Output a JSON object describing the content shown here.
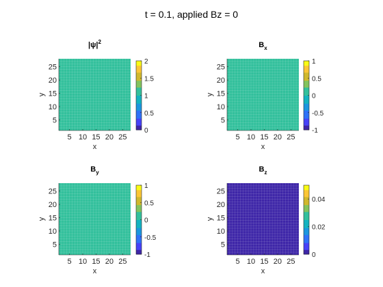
{
  "figure": {
    "title": "t = 0.1, applied Bz = 0"
  },
  "chart_data": [
    {
      "type": "heatmap",
      "title_base": "|ψ|",
      "title_sup": "2",
      "xlabel": "x",
      "ylabel": "y",
      "xticks": [
        "5",
        "10",
        "15",
        "20",
        "25"
      ],
      "yticks": [
        "5",
        "10",
        "15",
        "20",
        "25"
      ],
      "xlim": [
        1,
        28
      ],
      "ylim": [
        1,
        28
      ],
      "clim": [
        0,
        2
      ],
      "colorbar_ticks": [
        "0",
        "0.5",
        "1",
        "1.5",
        "2"
      ],
      "colorbar_tick_values": [
        0,
        0.5,
        1,
        1.5,
        2
      ],
      "field_value": 1
    },
    {
      "type": "heatmap",
      "title_base": "B",
      "title_sub": "x",
      "xlabel": "x",
      "ylabel": "y",
      "xticks": [
        "5",
        "10",
        "15",
        "20",
        "25"
      ],
      "yticks": [
        "5",
        "10",
        "15",
        "20",
        "25"
      ],
      "xlim": [
        1,
        28
      ],
      "ylim": [
        1,
        28
      ],
      "clim": [
        -1,
        1
      ],
      "colorbar_ticks": [
        "-1",
        "-0.5",
        "0",
        "0.5",
        "1"
      ],
      "colorbar_tick_values": [
        -1,
        -0.5,
        0,
        0.5,
        1
      ],
      "field_value": 0
    },
    {
      "type": "heatmap",
      "title_base": "B",
      "title_sub": "y",
      "xlabel": "x",
      "ylabel": "y",
      "xticks": [
        "5",
        "10",
        "15",
        "20",
        "25"
      ],
      "yticks": [
        "5",
        "10",
        "15",
        "20",
        "25"
      ],
      "xlim": [
        1,
        28
      ],
      "ylim": [
        1,
        28
      ],
      "clim": [
        -1,
        1
      ],
      "colorbar_ticks": [
        "-1",
        "-0.5",
        "0",
        "0.5",
        "1"
      ],
      "colorbar_tick_values": [
        -1,
        -0.5,
        0,
        0.5,
        1
      ],
      "field_value": 0
    },
    {
      "type": "heatmap",
      "title_base": "B",
      "title_sub": "z",
      "xlabel": "x",
      "ylabel": "y",
      "xticks": [
        "5",
        "10",
        "15",
        "20",
        "25"
      ],
      "yticks": [
        "5",
        "10",
        "15",
        "20",
        "25"
      ],
      "xlim": [
        1,
        28
      ],
      "ylim": [
        1,
        28
      ],
      "clim": [
        0,
        0.05
      ],
      "colorbar_ticks": [
        "0",
        "0.02",
        "0.04"
      ],
      "colorbar_tick_values": [
        0,
        0.02,
        0.04
      ],
      "field_value": 0
    }
  ],
  "colors": {
    "background": "#ffffff",
    "axis": "#262626",
    "parula": [
      "#3e26a8",
      "#4743f8",
      "#2f72f8",
      "#1b96df",
      "#13b3c0",
      "#32c09c",
      "#83c35d",
      "#d0b82d",
      "#fbc636",
      "#f9fb15"
    ]
  }
}
